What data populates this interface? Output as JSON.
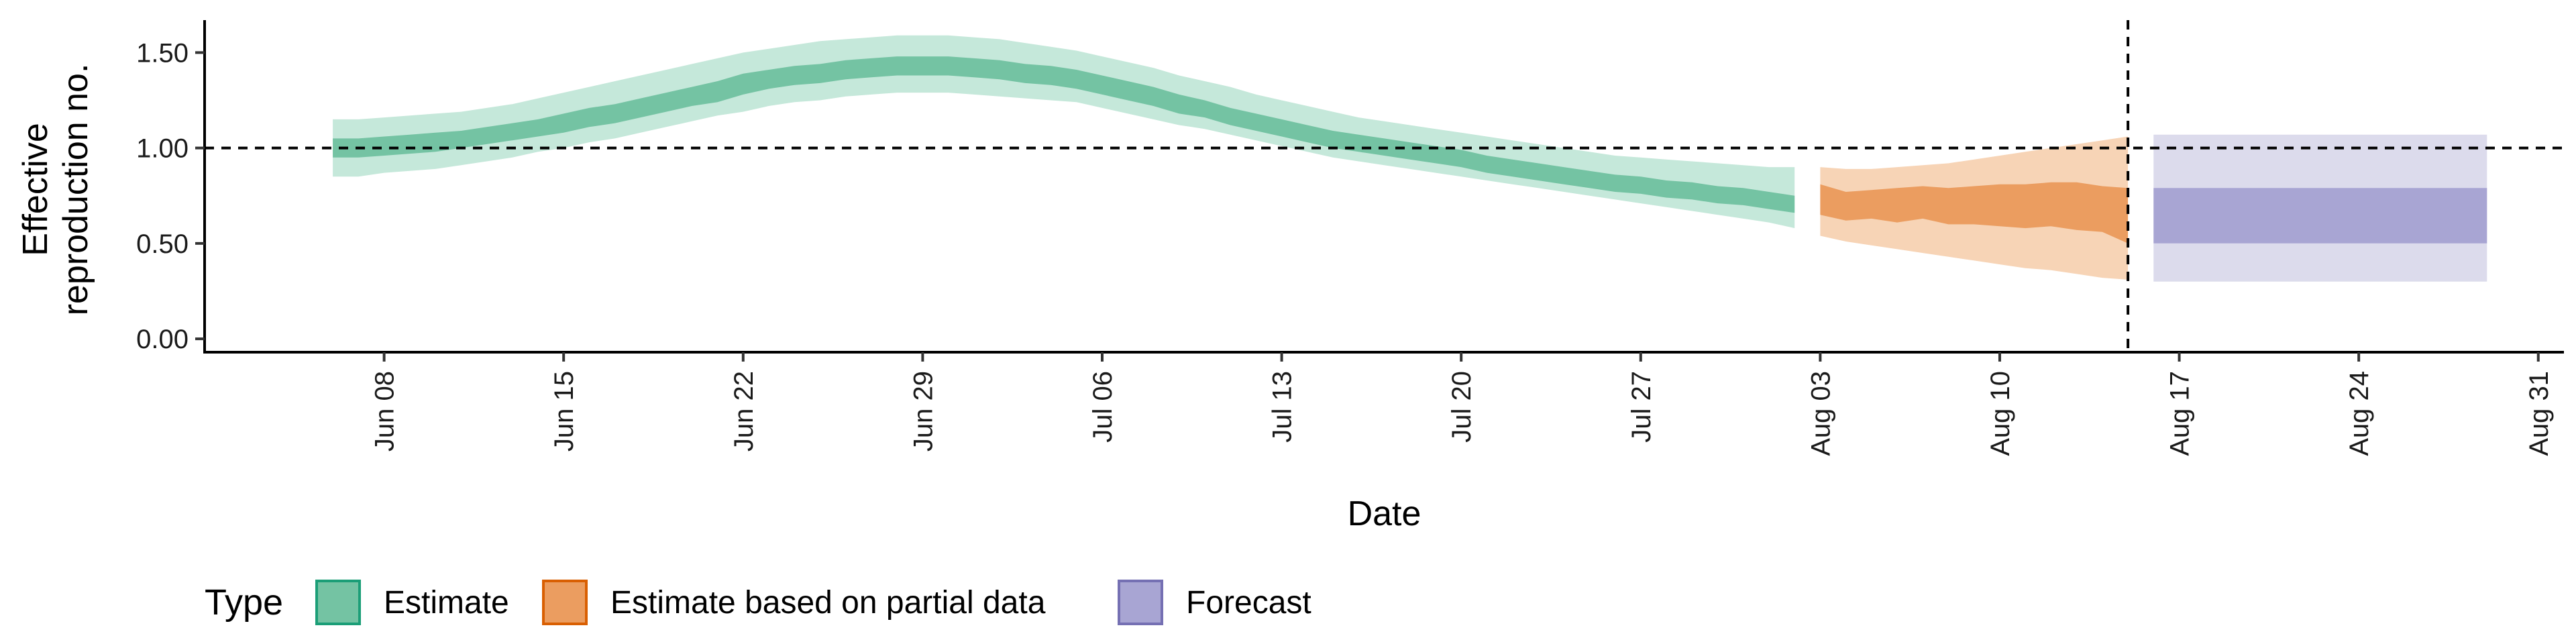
{
  "chart_data": {
    "type": "area",
    "xlabel": "Date",
    "ylabel_lines": [
      "Effective",
      "reproduction no."
    ],
    "x_tick_labels": [
      "Jun 08",
      "Jun 15",
      "Jun 22",
      "Jun 29",
      "Jul 06",
      "Jul 13",
      "Jul 20",
      "Jul 27",
      "Aug 03",
      "Aug 10",
      "Aug 17",
      "Aug 24",
      "Aug 31"
    ],
    "x_tick_dates": [
      "2020-06-08",
      "2020-06-15",
      "2020-06-22",
      "2020-06-29",
      "2020-07-06",
      "2020-07-13",
      "2020-07-20",
      "2020-07-27",
      "2020-08-03",
      "2020-08-10",
      "2020-08-17",
      "2020-08-24",
      "2020-08-31"
    ],
    "xlim": [
      "2020-06-01",
      "2020-09-01"
    ],
    "y_ticks": [
      0.0,
      0.5,
      1.0,
      1.5
    ],
    "y_tick_labels": [
      "0.00",
      "0.50",
      "1.00",
      "1.50"
    ],
    "ylim": [
      -0.07,
      1.67
    ],
    "grid": false,
    "reference_lines": {
      "horizontal_y": 1.0,
      "vertical_date": "2020-08-15"
    },
    "legend": {
      "title": "Type",
      "position": "bottom",
      "items": [
        {
          "label": "Estimate",
          "fill": "#74c3a3",
          "stroke": "#1b9e77"
        },
        {
          "label": "Estimate based on partial data",
          "fill": "#eb9d60",
          "stroke": "#d95f02"
        },
        {
          "label": "Forecast",
          "fill": "#a8a5d3",
          "stroke": "#7570b3"
        }
      ]
    },
    "series": [
      {
        "name": "Estimate",
        "outer_color": "#c5e8da",
        "inner_color": "#74c3a3",
        "x": [
          "2020-06-06",
          "2020-06-07",
          "2020-06-08",
          "2020-06-09",
          "2020-06-10",
          "2020-06-11",
          "2020-06-12",
          "2020-06-13",
          "2020-06-14",
          "2020-06-15",
          "2020-06-16",
          "2020-06-17",
          "2020-06-18",
          "2020-06-19",
          "2020-06-20",
          "2020-06-21",
          "2020-06-22",
          "2020-06-23",
          "2020-06-24",
          "2020-06-25",
          "2020-06-26",
          "2020-06-27",
          "2020-06-28",
          "2020-06-29",
          "2020-06-30",
          "2020-07-01",
          "2020-07-02",
          "2020-07-03",
          "2020-07-04",
          "2020-07-05",
          "2020-07-06",
          "2020-07-07",
          "2020-07-08",
          "2020-07-09",
          "2020-07-10",
          "2020-07-11",
          "2020-07-12",
          "2020-07-13",
          "2020-07-14",
          "2020-07-15",
          "2020-07-16",
          "2020-07-17",
          "2020-07-18",
          "2020-07-19",
          "2020-07-20",
          "2020-07-21",
          "2020-07-22",
          "2020-07-23",
          "2020-07-24",
          "2020-07-25",
          "2020-07-26",
          "2020-07-27",
          "2020-07-28",
          "2020-07-29",
          "2020-07-30",
          "2020-07-31",
          "2020-08-01",
          "2020-08-02"
        ],
        "lower_90": [
          0.85,
          0.85,
          0.87,
          0.88,
          0.89,
          0.91,
          0.93,
          0.95,
          0.98,
          1.0,
          1.03,
          1.05,
          1.08,
          1.11,
          1.14,
          1.17,
          1.19,
          1.22,
          1.24,
          1.25,
          1.27,
          1.28,
          1.29,
          1.29,
          1.29,
          1.28,
          1.27,
          1.26,
          1.25,
          1.24,
          1.21,
          1.18,
          1.15,
          1.12,
          1.1,
          1.07,
          1.04,
          1.01,
          0.98,
          0.95,
          0.93,
          0.91,
          0.89,
          0.87,
          0.85,
          0.83,
          0.81,
          0.79,
          0.77,
          0.75,
          0.73,
          0.71,
          0.69,
          0.67,
          0.65,
          0.63,
          0.61,
          0.58
        ],
        "lower_50": [
          0.95,
          0.95,
          0.96,
          0.97,
          0.98,
          1.0,
          1.02,
          1.04,
          1.06,
          1.08,
          1.11,
          1.13,
          1.16,
          1.19,
          1.22,
          1.24,
          1.28,
          1.31,
          1.33,
          1.34,
          1.36,
          1.37,
          1.38,
          1.38,
          1.38,
          1.37,
          1.36,
          1.34,
          1.33,
          1.31,
          1.28,
          1.25,
          1.22,
          1.18,
          1.16,
          1.12,
          1.09,
          1.06,
          1.03,
          1.0,
          0.98,
          0.96,
          0.94,
          0.92,
          0.9,
          0.87,
          0.85,
          0.83,
          0.81,
          0.79,
          0.77,
          0.76,
          0.74,
          0.73,
          0.71,
          0.7,
          0.68,
          0.66
        ],
        "upper_50": [
          1.05,
          1.05,
          1.06,
          1.07,
          1.08,
          1.09,
          1.11,
          1.13,
          1.15,
          1.18,
          1.21,
          1.23,
          1.26,
          1.29,
          1.32,
          1.35,
          1.39,
          1.41,
          1.43,
          1.44,
          1.46,
          1.47,
          1.48,
          1.48,
          1.48,
          1.47,
          1.46,
          1.44,
          1.43,
          1.41,
          1.38,
          1.35,
          1.32,
          1.28,
          1.25,
          1.21,
          1.18,
          1.15,
          1.12,
          1.09,
          1.07,
          1.05,
          1.03,
          1.01,
          0.99,
          0.96,
          0.94,
          0.92,
          0.9,
          0.88,
          0.86,
          0.85,
          0.83,
          0.82,
          0.8,
          0.79,
          0.77,
          0.75
        ],
        "upper_90": [
          1.15,
          1.15,
          1.16,
          1.17,
          1.18,
          1.19,
          1.21,
          1.23,
          1.26,
          1.29,
          1.32,
          1.35,
          1.38,
          1.41,
          1.44,
          1.47,
          1.5,
          1.52,
          1.54,
          1.56,
          1.57,
          1.58,
          1.59,
          1.59,
          1.59,
          1.58,
          1.57,
          1.55,
          1.53,
          1.51,
          1.48,
          1.45,
          1.42,
          1.38,
          1.35,
          1.32,
          1.28,
          1.25,
          1.22,
          1.19,
          1.16,
          1.14,
          1.12,
          1.1,
          1.08,
          1.06,
          1.04,
          1.02,
          1.0,
          0.98,
          0.96,
          0.95,
          0.94,
          0.93,
          0.92,
          0.91,
          0.9,
          0.9
        ]
      },
      {
        "name": "Estimate based on partial data",
        "outer_color": "#f7d4b6",
        "inner_color": "#eb9d60",
        "x": [
          "2020-08-03",
          "2020-08-04",
          "2020-08-05",
          "2020-08-06",
          "2020-08-07",
          "2020-08-08",
          "2020-08-09",
          "2020-08-10",
          "2020-08-11",
          "2020-08-12",
          "2020-08-13",
          "2020-08-14",
          "2020-08-15"
        ],
        "lower_90": [
          0.54,
          0.51,
          0.49,
          0.47,
          0.45,
          0.43,
          0.41,
          0.39,
          0.37,
          0.36,
          0.34,
          0.32,
          0.31
        ],
        "lower_50": [
          0.65,
          0.62,
          0.63,
          0.61,
          0.63,
          0.6,
          0.6,
          0.59,
          0.58,
          0.59,
          0.57,
          0.56,
          0.5
        ],
        "upper_50": [
          0.81,
          0.77,
          0.78,
          0.79,
          0.8,
          0.79,
          0.8,
          0.81,
          0.81,
          0.82,
          0.82,
          0.8,
          0.79
        ],
        "upper_90": [
          0.9,
          0.89,
          0.89,
          0.9,
          0.91,
          0.92,
          0.94,
          0.96,
          0.98,
          1.0,
          1.02,
          1.04,
          1.06
        ]
      },
      {
        "name": "Forecast",
        "outer_color": "#dcdbec",
        "inner_color": "#a8a5d3",
        "x": [
          "2020-08-16",
          "2020-08-29"
        ],
        "lower_90": [
          0.3,
          0.3
        ],
        "lower_50": [
          0.5,
          0.5
        ],
        "upper_50": [
          0.79,
          0.79
        ],
        "upper_90": [
          1.07,
          1.07
        ]
      }
    ]
  }
}
